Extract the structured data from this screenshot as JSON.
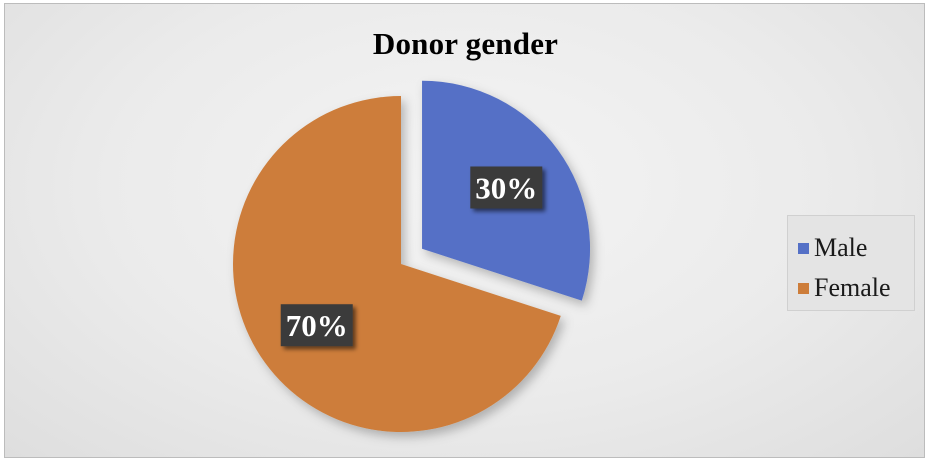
{
  "chart_data": {
    "type": "pie",
    "title": "Donor gender",
    "categories": [
      "Male",
      "Female"
    ],
    "values": [
      30,
      70
    ],
    "data_labels": [
      "30%",
      "70%"
    ],
    "colors": [
      "#5470c6",
      "#cd7d3a"
    ],
    "exploded": [
      true,
      false
    ],
    "legend_position": "right",
    "start_angle": "12 o'clock, clockwise"
  }
}
